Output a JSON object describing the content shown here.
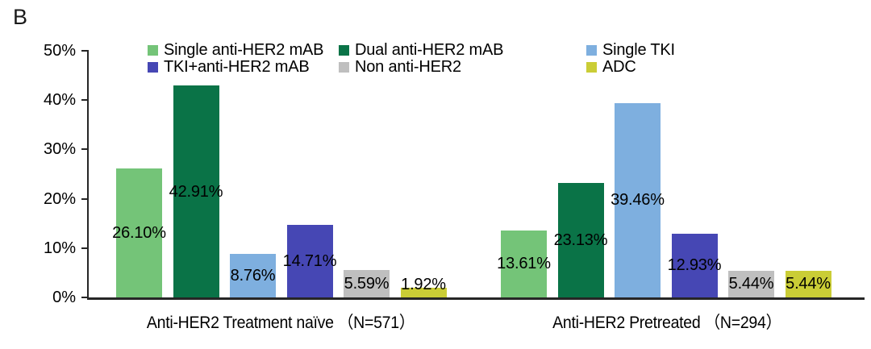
{
  "panel_label": "B",
  "colors": {
    "axis": "#262626",
    "text": "#000000",
    "background": "#ffffff"
  },
  "chart_data": {
    "type": "bar",
    "title": "",
    "xlabel": "",
    "ylabel": "",
    "categories": [
      "Anti-HER2 Treatment naïve （N=571）",
      "Anti-HER2 Pretreated （N=294）"
    ],
    "series": [
      {
        "name": "Single anti-HER2 mAB",
        "color": "#74C478",
        "values": [
          26.1,
          13.61
        ],
        "labels": [
          "26.10%",
          "13.61%"
        ]
      },
      {
        "name": "Dual anti-HER2 mAB",
        "color": "#0A7347",
        "values": [
          42.91,
          23.13
        ],
        "labels": [
          "42.91%",
          "23.13%"
        ]
      },
      {
        "name": "Single TKI",
        "color": "#7EAFDF",
        "values": [
          8.76,
          39.46
        ],
        "labels": [
          "8.76%",
          "39.46%"
        ]
      },
      {
        "name": "TKI+anti-HER2 mAB",
        "color": "#4647B4",
        "values": [
          14.71,
          12.93
        ],
        "labels": [
          "14.71%",
          "12.93%"
        ]
      },
      {
        "name": "Non anti-HER2",
        "color": "#BFBFBF",
        "values": [
          5.59,
          5.44
        ],
        "labels": [
          "5.59%",
          "5.44%"
        ]
      },
      {
        "name": "ADC",
        "color": "#CACD36",
        "values": [
          1.92,
          5.44
        ],
        "labels": [
          "1.92%",
          "5.44%"
        ]
      }
    ],
    "ylim": [
      0,
      50
    ],
    "yticks": [
      "0%",
      "10%",
      "20%",
      "30%",
      "40%",
      "50%"
    ],
    "legend_position": "top",
    "grid": false
  }
}
